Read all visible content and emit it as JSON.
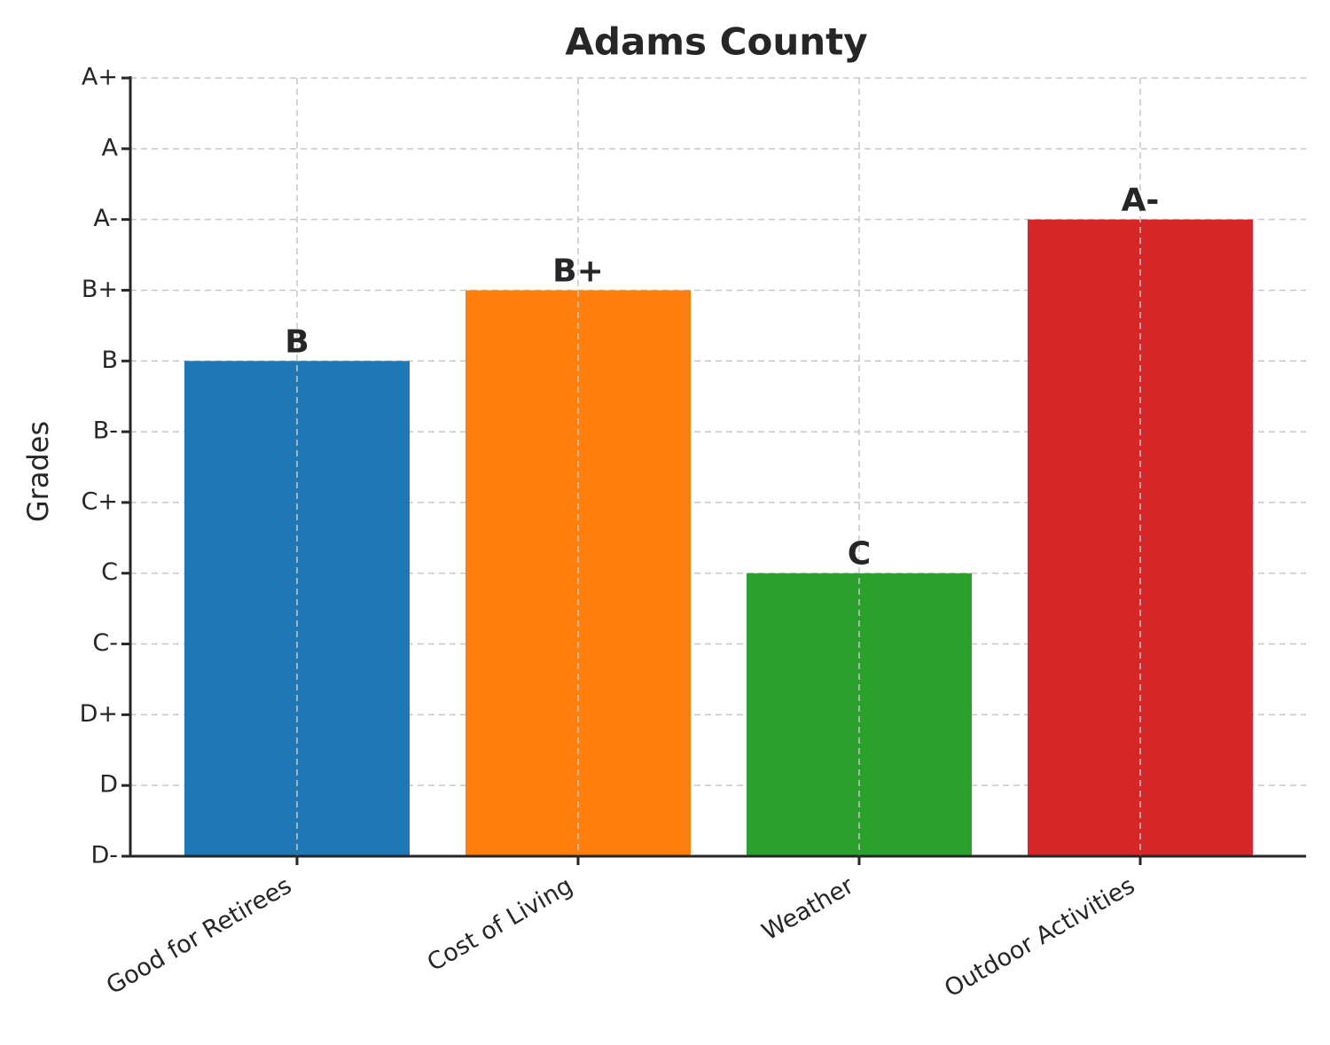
{
  "chart_data": {
    "type": "bar",
    "title": "Adams County",
    "y_label": "Grades",
    "categories": [
      "Good for Retirees",
      "Cost of Living",
      "Weather",
      "Outdoor Activities"
    ],
    "values": [
      7,
      8,
      4,
      9
    ],
    "value_labels": [
      "B",
      "B+",
      "C",
      "A-"
    ],
    "colors": [
      "#1f77b4",
      "#ff7f0e",
      "#2ca02c",
      "#d62728"
    ],
    "ylim": [
      0,
      11
    ],
    "yticks": [
      {
        "value": 0,
        "label": "D-"
      },
      {
        "value": 1,
        "label": "D"
      },
      {
        "value": 2,
        "label": "D+"
      },
      {
        "value": 3,
        "label": "C-"
      },
      {
        "value": 4,
        "label": "C"
      },
      {
        "value": 5,
        "label": "C+"
      },
      {
        "value": 6,
        "label": "B-"
      },
      {
        "value": 7,
        "label": "B"
      },
      {
        "value": 8,
        "label": "B+"
      },
      {
        "value": 9,
        "label": "A-"
      },
      {
        "value": 10,
        "label": "A"
      },
      {
        "value": 11,
        "label": "A+"
      }
    ],
    "grid": true
  }
}
